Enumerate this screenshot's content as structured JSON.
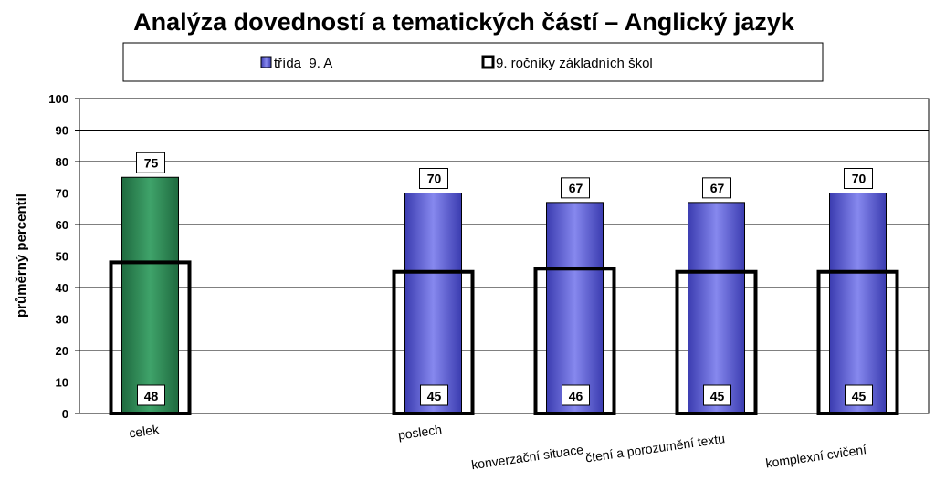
{
  "chart_data": {
    "type": "bar",
    "title": "Analýza dovedností a tematických částí – Anglický jazyk",
    "ylabel": "průměrný percentil",
    "xlabel": "",
    "ylim": [
      0,
      100
    ],
    "yticks": [
      0,
      10,
      20,
      30,
      40,
      50,
      60,
      70,
      80,
      90,
      100
    ],
    "grid": true,
    "legend_position": "top",
    "categories": [
      "celek",
      "",
      "poslech",
      "konverzační situace",
      "čtení a porozumění textu",
      "komplexní cvičení"
    ],
    "series": [
      {
        "name": "třída  9. A",
        "values": [
          75,
          null,
          70,
          67,
          67,
          70
        ],
        "colors": [
          "#2e8b57",
          null,
          "#5d5fd6",
          "#5d5fd6",
          "#5d5fd6",
          "#5d5fd6"
        ]
      },
      {
        "name": "9. ročníky základních škol",
        "values": [
          48,
          null,
          45,
          46,
          45,
          45
        ]
      }
    ],
    "colors": {
      "green_bar": "#2e8b57",
      "blue_bar": "#5d5fd6",
      "outline_bar": "#000000",
      "grid": "#000000",
      "plot_bg": "#ffffff"
    }
  }
}
